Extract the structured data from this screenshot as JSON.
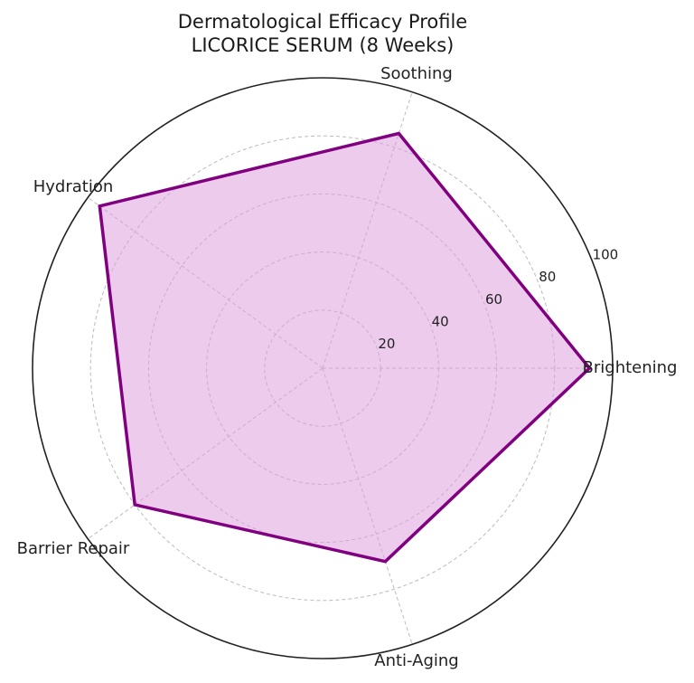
{
  "chart_data": {
    "type": "radar",
    "title_lines": [
      "Dermatological Efficacy Profile",
      "LICORICE SERUM (8 Weeks)"
    ],
    "axes": [
      "Brightening",
      "Soothing",
      "Hydration",
      "Barrier Repair",
      "Anti-Aging"
    ],
    "values": [
      92,
      85,
      95,
      80,
      70
    ],
    "rlim": [
      0,
      100
    ],
    "rticks": [
      20,
      40,
      60,
      80,
      100
    ],
    "rtick_labels": [
      "20",
      "40",
      "60",
      "80",
      "100"
    ],
    "grid": true,
    "colors": {
      "line": "#800080",
      "fill": "#dda0dd",
      "fill_opacity": 0.55,
      "frame": "#222222",
      "grid": "#bbbbbb"
    }
  }
}
